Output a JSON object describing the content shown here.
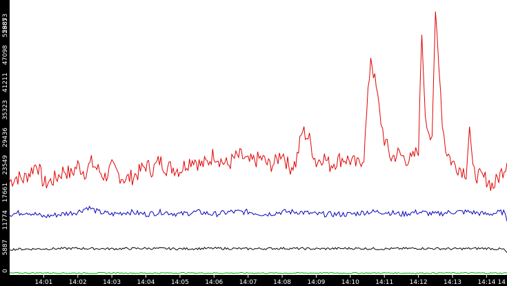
{
  "chart_data": {
    "type": "line",
    "title": "",
    "xlabel": "",
    "ylabel": "",
    "x_ticks": [
      "14:01",
      "14:02",
      "14:03",
      "14:04",
      "14:05",
      "14:06",
      "14:07",
      "14:08",
      "14:09",
      "14:10",
      "14:11",
      "14:12",
      "14:13",
      "14:14",
      "14"
    ],
    "y_ticks": [
      0,
      5887,
      11774,
      17661,
      23549,
      29436,
      35323,
      41211,
      47098,
      52985,
      58873
    ],
    "ylim": [
      0,
      58873
    ],
    "xlim_minutes": [
      0,
      14.6
    ],
    "x_start": "14:00",
    "grid": false,
    "legend": "none",
    "colors": {
      "background": "#ffffff",
      "axis_band": "#000000",
      "tick_text": "#ffffff"
    },
    "series": [
      {
        "color": "#e00000",
        "x_minutes": [
          0.0,
          0.2,
          0.4,
          0.6,
          0.8,
          1.0,
          1.2,
          1.4,
          1.6,
          1.8,
          2.0,
          2.2,
          2.4,
          2.6,
          2.8,
          3.0,
          3.2,
          3.4,
          3.6,
          3.8,
          4.0,
          4.2,
          4.4,
          4.6,
          4.8,
          5.0,
          5.2,
          5.4,
          5.6,
          5.8,
          6.0,
          6.2,
          6.4,
          6.6,
          6.8,
          7.0,
          7.2,
          7.4,
          7.6,
          7.8,
          8.0,
          8.2,
          8.4,
          8.6,
          8.8,
          9.0,
          9.2,
          9.4,
          9.6,
          9.8,
          10.0,
          10.2,
          10.4,
          10.6,
          10.8,
          10.9,
          11.0,
          11.2,
          11.4,
          11.6,
          11.8,
          12.0,
          12.1,
          12.2,
          12.3,
          12.4,
          12.5,
          12.6,
          12.7,
          12.8,
          13.0,
          13.2,
          13.4,
          13.5,
          13.6,
          13.8,
          14.0,
          14.2,
          14.4,
          14.6
        ],
        "values": [
          20000,
          21000,
          20500,
          22000,
          24000,
          19500,
          20000,
          21000,
          22500,
          21500,
          23500,
          22000,
          24000,
          22500,
          21000,
          23000,
          21500,
          20500,
          21000,
          22000,
          23500,
          22500,
          24500,
          23000,
          23000,
          22500,
          24000,
          25000,
          23500,
          24000,
          26000,
          24500,
          23500,
          25000,
          25500,
          24000,
          24500,
          25000,
          23500,
          24000,
          26500,
          23000,
          24000,
          31000,
          29000,
          24000,
          25500,
          23500,
          24500,
          25000,
          24500,
          23500,
          25500,
          47000,
          38000,
          33000,
          29000,
          25000,
          26000,
          25000,
          24500,
          27000,
          52000,
          35000,
          31000,
          28000,
          56000,
          46000,
          33000,
          27000,
          24000,
          23000,
          22000,
          32000,
          22000,
          21000,
          20500,
          19000,
          21500,
          24000
        ]
      },
      {
        "color": "#0000bb",
        "x_minutes": [
          0.0,
          0.5,
          1.0,
          1.5,
          2.0,
          2.3,
          2.6,
          3.0,
          3.5,
          4.0,
          4.5,
          5.0,
          5.5,
          6.0,
          6.5,
          7.0,
          7.5,
          8.0,
          8.5,
          9.0,
          9.5,
          10.0,
          10.5,
          11.0,
          11.5,
          12.0,
          12.5,
          13.0,
          13.5,
          14.0,
          14.5,
          14.6
        ],
        "values": [
          13000,
          13500,
          12500,
          13000,
          13500,
          14500,
          13500,
          13000,
          13500,
          13000,
          13500,
          13000,
          13500,
          13000,
          13500,
          13500,
          13000,
          13500,
          13500,
          13000,
          13000,
          13000,
          13500,
          13500,
          13000,
          13500,
          13000,
          13500,
          13500,
          13000,
          13500,
          11500
        ]
      },
      {
        "color": "#000000",
        "x_minutes": [
          0.0,
          1.0,
          2.0,
          3.0,
          4.0,
          5.0,
          6.0,
          7.0,
          8.0,
          9.0,
          10.0,
          11.0,
          12.0,
          13.0,
          14.0,
          14.5,
          14.6
        ],
        "values": [
          5500,
          5600,
          5700,
          5600,
          5700,
          5600,
          5700,
          5600,
          5700,
          5600,
          5700,
          5600,
          5700,
          5600,
          5700,
          5500,
          4800
        ]
      },
      {
        "color": "#00aa00",
        "x_minutes": [
          0.0,
          1.0,
          2.0,
          3.0,
          4.0,
          5.0,
          6.0,
          7.0,
          8.0,
          9.0,
          10.0,
          11.0,
          12.0,
          13.0,
          14.0,
          14.6
        ],
        "values": [
          400,
          450,
          400,
          420,
          400,
          430,
          410,
          420,
          400,
          430,
          410,
          420,
          400,
          430,
          410,
          400
        ]
      }
    ]
  }
}
